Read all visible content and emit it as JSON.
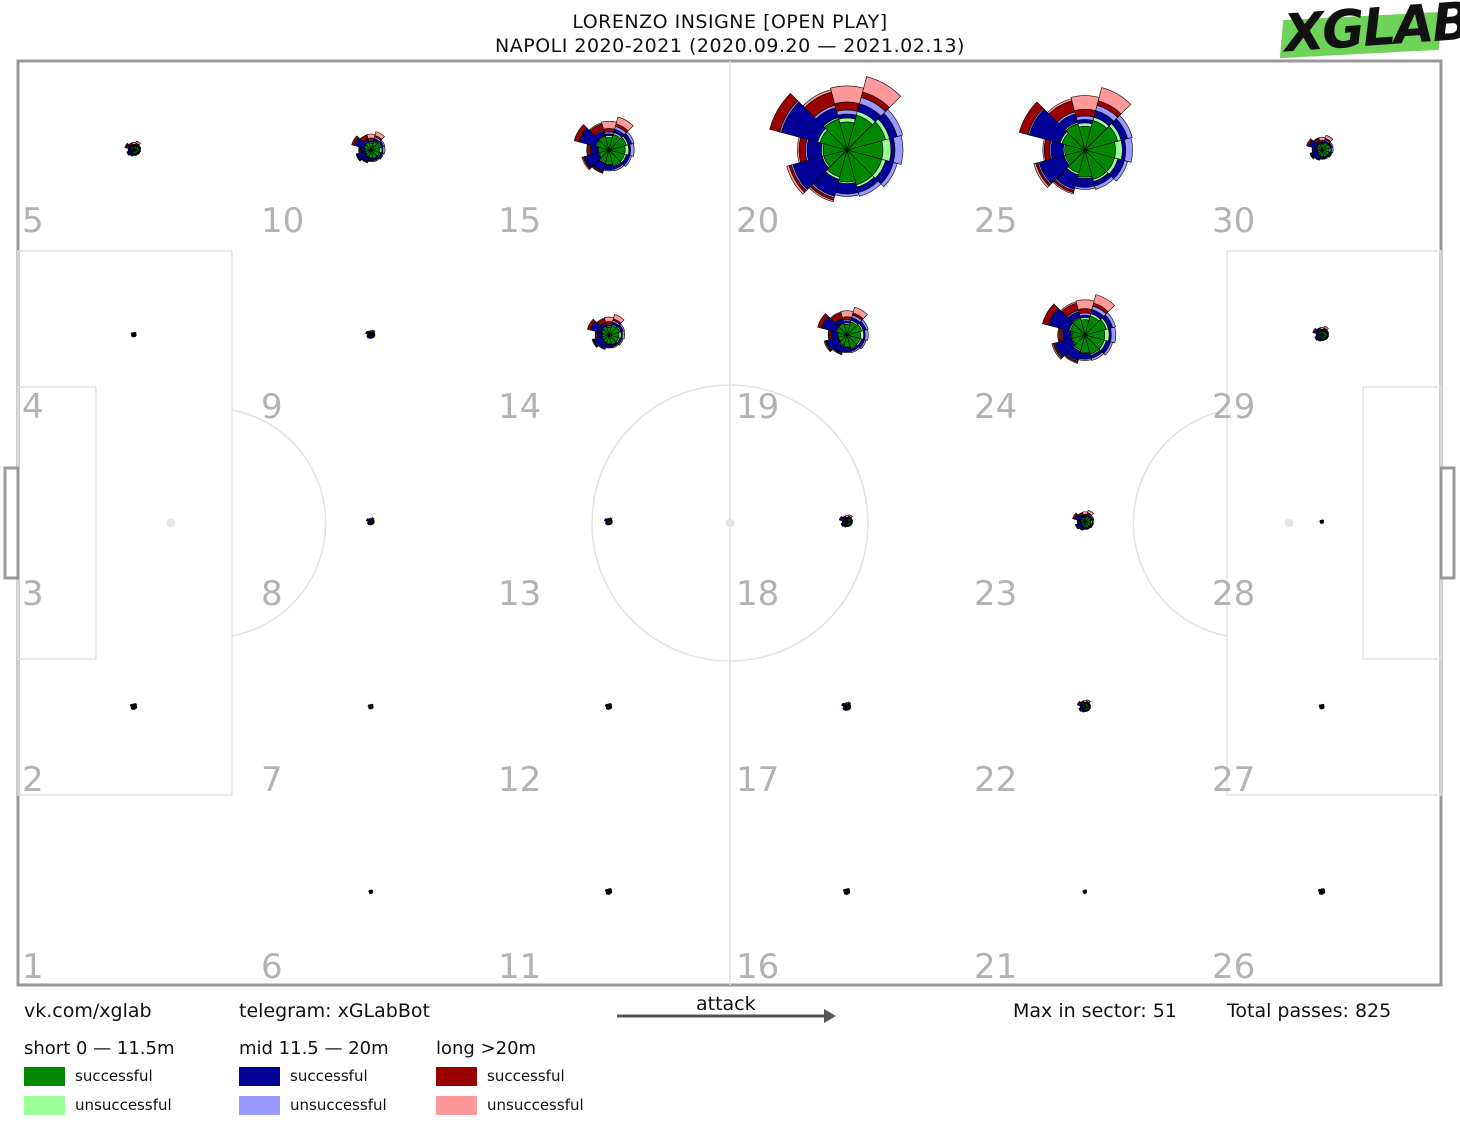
{
  "title": {
    "line1": "LORENZO INSIGNE [OPEN PLAY]",
    "line2": "NAPOLI 2020-2021 (2020.09.20 — 2021.02.13)"
  },
  "logo": {
    "text": "XGLAB",
    "color": "#6fd35a"
  },
  "footer": {
    "vk": "vk.com/xglab",
    "telegram": "telegram: xGLabBot",
    "attack": "attack",
    "max_in_sector": "Max in sector: 51",
    "total_passes": "Total passes: 825"
  },
  "legend": {
    "groups": [
      {
        "title": "short 0 — 11.5m",
        "successful": "successful",
        "unsuccessful": "unsuccessful",
        "color_success": "#008800",
        "color_fail": "#99ff99"
      },
      {
        "title": "mid 11.5 — 20m",
        "successful": "successful",
        "unsuccessful": "unsuccessful",
        "color_success": "#000099",
        "color_fail": "#9999ff"
      },
      {
        "title": "long >20m",
        "successful": "successful",
        "unsuccessful": "unsuccessful",
        "color_success": "#990000",
        "color_fail": "#ff9999"
      }
    ]
  },
  "chart_data": {
    "type": "radial-sector",
    "max_in_sector": 51,
    "total_passes": 825,
    "sector_grid": {
      "columns": 6,
      "rows": 5
    },
    "sector_labels": [
      "1",
      "2",
      "3",
      "4",
      "5",
      "6",
      "7",
      "8",
      "9",
      "10",
      "11",
      "12",
      "13",
      "14",
      "15",
      "16",
      "17",
      "18",
      "19",
      "20",
      "21",
      "22",
      "23",
      "24",
      "25",
      "26",
      "27",
      "28",
      "29",
      "30"
    ],
    "sectors": [
      {
        "id": 5,
        "scale": 0.12
      },
      {
        "id": 10,
        "scale": 0.25
      },
      {
        "id": 15,
        "scale": 0.45
      },
      {
        "id": 20,
        "scale": 1.0
      },
      {
        "id": 25,
        "scale": 0.85
      },
      {
        "id": 30,
        "scale": 0.2
      },
      {
        "id": 4,
        "scale": 0.04
      },
      {
        "id": 9,
        "scale": 0.07
      },
      {
        "id": 14,
        "scale": 0.28
      },
      {
        "id": 19,
        "scale": 0.38
      },
      {
        "id": 24,
        "scale": 0.55
      },
      {
        "id": 29,
        "scale": 0.12
      },
      {
        "id": 8,
        "scale": 0.06
      },
      {
        "id": 13,
        "scale": 0.06
      },
      {
        "id": 18,
        "scale": 0.1
      },
      {
        "id": 23,
        "scale": 0.16
      },
      {
        "id": 28,
        "scale": 0.03
      },
      {
        "id": 2,
        "scale": 0.05
      },
      {
        "id": 7,
        "scale": 0.04
      },
      {
        "id": 12,
        "scale": 0.05
      },
      {
        "id": 17,
        "scale": 0.07
      },
      {
        "id": 22,
        "scale": 0.1
      },
      {
        "id": 27,
        "scale": 0.04
      },
      {
        "id": 6,
        "scale": 0.03
      },
      {
        "id": 11,
        "scale": 0.05
      },
      {
        "id": 16,
        "scale": 0.05
      },
      {
        "id": 21,
        "scale": 0.03
      },
      {
        "id": 26,
        "scale": 0.05
      }
    ],
    "petals": [
      {
        "angle": 0,
        "short_s": 0.45,
        "short_u": 0.55,
        "mid_s": 0.6,
        "mid_u": 0.7,
        "long_s": 0.0,
        "long_u": 0.0
      },
      {
        "angle": 30,
        "short_s": 0.5,
        "short_u": 0.55,
        "mid_s": 0.65,
        "mid_u": 0.72,
        "long_s": 0.0,
        "long_u": 0.0
      },
      {
        "angle": 60,
        "short_s": 0.45,
        "short_u": 0.5,
        "mid_s": 0.6,
        "mid_u": 0.68,
        "long_s": 0.75,
        "long_u": 0.95
      },
      {
        "angle": 90,
        "short_s": 0.35,
        "short_u": 0.4,
        "mid_s": 0.45,
        "mid_u": 0.5,
        "long_s": 0.6,
        "long_u": 0.8
      },
      {
        "angle": 120,
        "short_s": 0.4,
        "short_u": 0.42,
        "mid_s": 0.55,
        "mid_u": 0.58,
        "long_s": 0.75,
        "long_u": 0.78
      },
      {
        "angle": 150,
        "short_s": 0.35,
        "short_u": 0.38,
        "mid_s": 0.85,
        "mid_u": 0.87,
        "long_s": 1.0,
        "long_u": 1.0
      },
      {
        "angle": 180,
        "short_s": 0.3,
        "short_u": 0.32,
        "mid_s": 0.5,
        "mid_u": 0.52,
        "long_s": 0.6,
        "long_u": 0.62
      },
      {
        "angle": 210,
        "short_s": 0.3,
        "short_u": 0.32,
        "mid_s": 0.7,
        "mid_u": 0.72,
        "long_s": 0.75,
        "long_u": 0.78
      },
      {
        "angle": 240,
        "short_s": 0.35,
        "short_u": 0.38,
        "mid_s": 0.6,
        "mid_u": 0.62,
        "long_s": 0.65,
        "long_u": 0.67
      },
      {
        "angle": 270,
        "short_s": 0.4,
        "short_u": 0.42,
        "mid_s": 0.55,
        "mid_u": 0.58,
        "long_s": 0.0,
        "long_u": 0.0
      },
      {
        "angle": 300,
        "short_s": 0.45,
        "short_u": 0.48,
        "mid_s": 0.55,
        "mid_u": 0.6,
        "long_s": 0.0,
        "long_u": 0.0
      },
      {
        "angle": 330,
        "short_s": 0.45,
        "short_u": 0.5,
        "mid_s": 0.6,
        "mid_u": 0.65,
        "long_s": 0.0,
        "long_u": 0.0
      }
    ]
  }
}
